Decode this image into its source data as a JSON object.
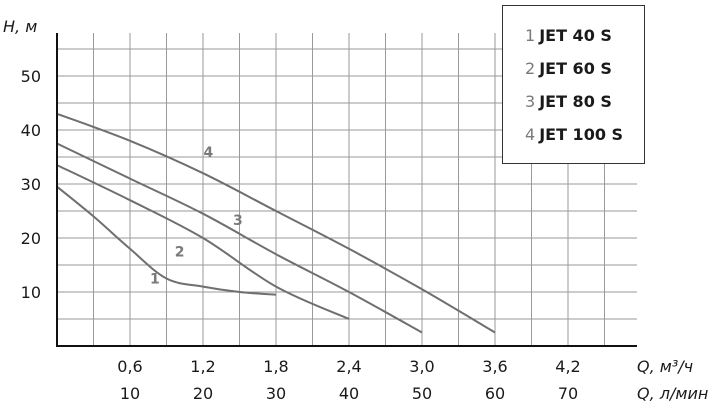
{
  "chart_data": {
    "type": "line",
    "title": "",
    "ylabel": "H, м",
    "xlabel_primary": "Q, м³/ч",
    "xlabel_secondary": "Q, л/мин",
    "ylim": [
      0,
      59
    ],
    "xlim": [
      0,
      4.6
    ],
    "grid": true,
    "yticks": [
      "10",
      "20",
      "30",
      "40",
      "50"
    ],
    "xticks_primary": [
      "0,6",
      "1,2",
      "1,8",
      "2,4",
      "3,0",
      "3,6",
      "4,2"
    ],
    "xticks_secondary": [
      "10",
      "20",
      "30",
      "40",
      "50",
      "60",
      "70"
    ],
    "legend_position": "top-right",
    "series": [
      {
        "name": "JET 40 S",
        "label": "1",
        "x": [
          0,
          0.3,
          0.6,
          0.9,
          1.2,
          1.5,
          1.8
        ],
        "y": [
          29.5,
          24,
          18,
          12.5,
          11,
          10,
          9.5
        ]
      },
      {
        "name": "JET 60 S",
        "label": "2",
        "x": [
          0,
          0.6,
          1.2,
          1.8,
          2.4
        ],
        "y": [
          33.5,
          27,
          20,
          11,
          5
        ]
      },
      {
        "name": "JET 80 S",
        "label": "3",
        "x": [
          0,
          0.6,
          1.2,
          1.8,
          2.4,
          3.0
        ],
        "y": [
          37.5,
          31,
          24.5,
          17,
          10,
          2.5
        ]
      },
      {
        "name": "JET 100 S",
        "label": "4",
        "x": [
          0,
          0.6,
          1.2,
          1.8,
          2.4,
          3.0,
          3.6
        ],
        "y": [
          43,
          38,
          32,
          25,
          18,
          10.5,
          2.5
        ]
      }
    ]
  },
  "legend": {
    "items": [
      {
        "num": "1",
        "name": "JET 40 S"
      },
      {
        "num": "2",
        "name": "JET 60 S"
      },
      {
        "num": "3",
        "name": "JET 80 S"
      },
      {
        "num": "4",
        "name": "JET 100 S"
      }
    ]
  },
  "colors": {
    "curve": "#6f6f6f",
    "grid": "#9a9a9a",
    "axis": "#111111",
    "label": "#7a7a7a"
  }
}
